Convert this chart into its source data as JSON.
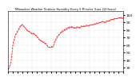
{
  "title": "Milwaukee Weather Outdoor Humidity Every 5 Minutes (Last 24 Hours)",
  "bg_color": "#ffffff",
  "line_color": "#ff0000",
  "grid_color": "#cccccc",
  "y_ticks": [
    30,
    40,
    50,
    60,
    70,
    80,
    90,
    100
  ],
  "ylim": [
    25,
    105
  ],
  "y_points": [
    28,
    29,
    30,
    31,
    32,
    34,
    36,
    38,
    41,
    45,
    50,
    55,
    60,
    63,
    65,
    67,
    69,
    71,
    73,
    74,
    75,
    76,
    77,
    78,
    79,
    80,
    81,
    82,
    83,
    84,
    85,
    86,
    86,
    86,
    87,
    87,
    87,
    86,
    85,
    85,
    84,
    83,
    83,
    82,
    82,
    81,
    80,
    80,
    79,
    79,
    79,
    79,
    78,
    78,
    77,
    76,
    76,
    76,
    75,
    75,
    75,
    75,
    75,
    75,
    75,
    74,
    74,
    74,
    73,
    73,
    72,
    71,
    71,
    70,
    70,
    69,
    68,
    67,
    67,
    67,
    66,
    66,
    66,
    65,
    65,
    65,
    64,
    64,
    64,
    64,
    63,
    63,
    62,
    62,
    62,
    61,
    60,
    59,
    59,
    58,
    57,
    57,
    57,
    57,
    57,
    57,
    57,
    57,
    58,
    58,
    58,
    58,
    59,
    60,
    62,
    64,
    65,
    66,
    67,
    68,
    69,
    70,
    71,
    72,
    73,
    73,
    74,
    74,
    75,
    76,
    76,
    77,
    77,
    78,
    78,
    79,
    79,
    79,
    80,
    80,
    80,
    81,
    81,
    81,
    81,
    82,
    82,
    83,
    83,
    83,
    83,
    83,
    84,
    84,
    84,
    84,
    84,
    84,
    84,
    84,
    84,
    83,
    83,
    83,
    83,
    83,
    83,
    83,
    83,
    83,
    84,
    84,
    84,
    84,
    84,
    84,
    83,
    83,
    83,
    84,
    84,
    85,
    85,
    85,
    85,
    85,
    85,
    85,
    85,
    85,
    85,
    85,
    85,
    86,
    86,
    86,
    86,
    86,
    86,
    86,
    86,
    86,
    86,
    87,
    87,
    87,
    87,
    87,
    87,
    87,
    87,
    87,
    88,
    88,
    88,
    88,
    88,
    88,
    89,
    89,
    89,
    89,
    89,
    89,
    89,
    90,
    90,
    90,
    90,
    90,
    91,
    91,
    91,
    91,
    91,
    91,
    91,
    91,
    90,
    90,
    90,
    90,
    91,
    91,
    92,
    92,
    92,
    92,
    92,
    92,
    92,
    92,
    93,
    93,
    93,
    94,
    94,
    94,
    94,
    94,
    94,
    94,
    94,
    95,
    95,
    95,
    95,
    95,
    95,
    95,
    95,
    95,
    96,
    96,
    96,
    96,
    96,
    96,
    96,
    96,
    96,
    96,
    96,
    95,
    95,
    96,
    96
  ]
}
